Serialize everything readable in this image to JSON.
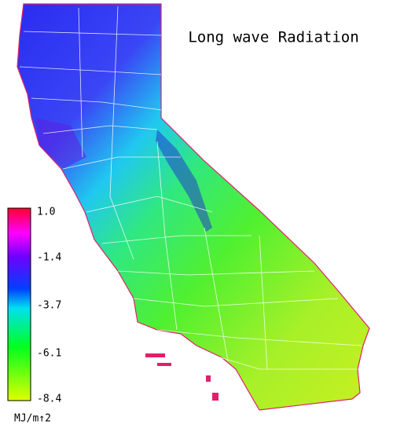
{
  "title": "Long wave Radiation",
  "legend": {
    "ticks": [
      "1.0",
      "-1.4",
      "-3.7",
      "-6.1",
      "-8.4"
    ],
    "unit": "MJ/m↑2"
  }
}
